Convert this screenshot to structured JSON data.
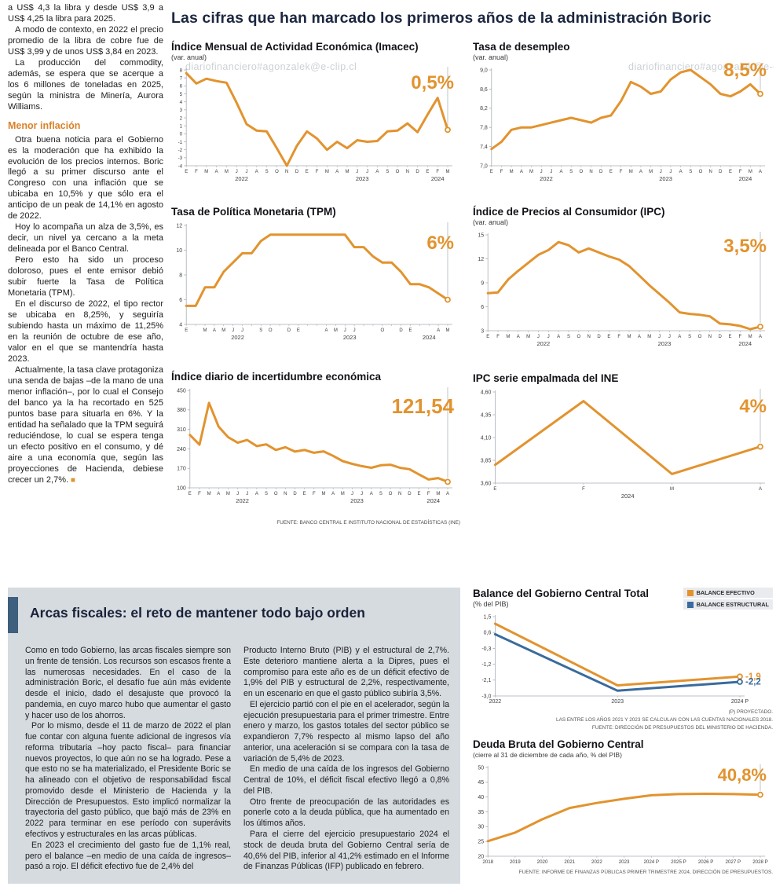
{
  "watermark": "diariofinanciero#agonzalek@e-clip.cl",
  "left_article": {
    "paragraphs_top": [
      "a US$ 4,3 la libra y desde US$ 3,9 a US$ 4,25 la libra para 2025.",
      "A modo de contexto, en 2022 el precio promedio de la libra de cobre fue de US$ 3,99 y de unos US$ 3,84 en 2023.",
      "La producción del commodity, además, se espera que se acerque a los 6 millones de toneladas en 2025, según la ministra de Minería, Aurora Williams."
    ],
    "heading": "Menor inflación",
    "paragraphs_bottom": [
      "Otra buena noticia para el Gobierno es la moderación que ha exhibido la evolución de los precios internos. Boric llegó a su primer discurso ante el Congreso con una inflación que se ubicaba en 10,5% y que sólo era el anticipo de un peak de 14,1% en agosto de 2022.",
      "Hoy lo acompaña un alza de 3,5%, es decir, un nivel ya cercano a la meta delineada por el Banco Central.",
      "Pero esto ha sido un proceso doloroso, pues el ente emisor debió subir fuerte la Tasa de Política Monetaria (TPM).",
      "En el discurso de 2022, el tipo rector se ubicaba en 8,25%, y seguiría subiendo hasta un máximo de 11,25% en la reunión de octubre de ese año, valor en el que se mantendría hasta 2023.",
      "Actualmente, la tasa clave protagoniza una senda de bajas –de la mano de una menor inflación–, por lo cual el Consejo del banco ya la ha recortado en 525 puntos base para situarla en 6%. Y la entidad ha señalado que la TPM seguirá reduciéndose, lo cual se espera tenga un efecto positivo en el consumo, y dé aire a una economía que, según las proyecciones de Hacienda, debiese crecer un 2,7%."
    ],
    "end_mark": "■"
  },
  "main": {
    "title": "Las cifras que han marcado los primeros años de la administración Boric",
    "source_note": "FUENTE: BANCO CENTRAL E INSTITUTO NACIONAL DE ESTADÍSTICAS (INE)"
  },
  "fiscal_section": {
    "title": "Arcas fiscales: el reto de mantener todo bajo orden",
    "col1": [
      "Como en todo Gobierno, las arcas fiscales siempre son un frente de tensión. Los recursos son escasos frente a las numerosas necesidades. En el caso de la administración Boric, el desafío fue aún más evidente desde el inicio, dado el desajuste que provocó la pandemia, en cuyo marco hubo que aumentar el gasto y hacer uso de los ahorros.",
      "Por lo mismo, desde el 11 de marzo de 2022 el plan fue contar con alguna fuente adicional de ingresos vía reforma tributaria –hoy pacto fiscal– para financiar nuevos proyectos, lo que aún no se ha logrado. Pese a que esto no se ha materializado, el Presidente Boric se ha alineado con el objetivo de responsabilidad fiscal promovido desde el Ministerio de Hacienda y la Dirección de Presupuestos. Esto implicó normalizar la trayectoria del gasto público, que bajó más de 23% en 2022 para terminar en ese período con superávits efectivos y estructurales en las arcas públicas.",
      "En 2023 el crecimiento del gasto fue de 1,1% real, pero el balance –en medio de una caída de ingresos– pasó a rojo. El déficit efectivo fue de 2,4% del"
    ],
    "col2": [
      "Producto Interno Bruto (PIB) y el estructural de 2,7%. Este deterioro mantiene alerta a la Dipres, pues el compromiso para este año es de un déficit efectivo de 1,9% del PIB y estructural de 2,2%, respectivamente, en un escenario en que el gasto público subiría 3,5%.",
      "El ejercicio partió con el pie en el acelerador, según la ejecución presupuestaria para el primer trimestre. Entre enero y marzo, los gastos totales del sector público se expandieron 7,7% respecto al mismo lapso del año anterior, una aceleración si se compara con la tasa de variación de 5,4% de 2023.",
      "En medio de una caída de los ingresos del Gobierno Central de 10%, el déficit fiscal efectivo llegó a 0,8% del PIB.",
      "Otro frente de preocupación de las autoridades es ponerle coto a la deuda pública, que ha aumentado en los últimos años.",
      "Para el cierre del ejercicio presupuestario 2024 el stock de deuda bruta del Gobierno Central sería de 40,6% del PIB, inferior al 41,2% estimado en el Informe de Finanzas Públicas (IFP) publicado en febrero."
    ]
  },
  "balance_notes": [
    "(P) PROYECTADO.",
    "LAS ENTRE LOS AÑOS 2021 Y 2023 SE CALCULAN CON LAS CUENTAS NACIONALES 2018.",
    "FUENTE: DIRECCIÓN DE PRESUPUESTOS DEL MINISTERIO DE HACIENDA."
  ],
  "deuda_note": "FUENTE: INFORME DE FINANZAS PÚBLICAS PRIMER TRIMESTRE 2024, DIRECCIÓN DE PRESUPUESTOS.",
  "colors": {
    "accent_orange": "#E2932E",
    "line_blue": "#3A6B9C",
    "headline_navy": "#1C2740"
  },
  "chart_data": [
    {
      "id": "imacec",
      "type": "line",
      "title": "Índice Mensual de Actividad Económica (Imacec)",
      "subtitle": "(var. anual)",
      "highlight": "0,5%",
      "color": "#E2932E",
      "ylim": [
        -4,
        8
      ],
      "yfs": 6.3,
      "yticks": [
        8,
        7,
        6,
        5,
        4,
        3,
        2,
        1,
        0,
        -1,
        -2,
        -3,
        -4
      ],
      "x": [
        "E",
        "F",
        "M",
        "A",
        "M",
        "J",
        "J",
        "A",
        "S",
        "O",
        "N",
        "D",
        "E",
        "F",
        "M",
        "A",
        "M",
        "J",
        "J",
        "A",
        "S",
        "O",
        "N",
        "D",
        "E",
        "F",
        "M"
      ],
      "year_groups": [
        {
          "label": "2022",
          "from": 0,
          "to": 11
        },
        {
          "label": "2023",
          "from": 12,
          "to": 23
        },
        {
          "label": "2024",
          "from": 24,
          "to": 26
        }
      ],
      "values": [
        7.6,
        6.3,
        6.9,
        6.6,
        6.4,
        3.9,
        1.2,
        0.4,
        0.3,
        -1.8,
        -4.0,
        -1.5,
        0.3,
        -0.6,
        -2.0,
        -1.0,
        -1.8,
        -0.8,
        -1.0,
        -0.9,
        0.3,
        0.4,
        1.3,
        0.2,
        2.4,
        4.5,
        0.5
      ]
    },
    {
      "id": "desempleo",
      "type": "line",
      "title": "Tasa de desempleo",
      "subtitle": "(var. anual)",
      "highlight": "8,5%",
      "color": "#E2932E",
      "ylim": [
        7.0,
        9.0
      ],
      "yticks": [
        9.0,
        8.6,
        8.2,
        7.8,
        7.4,
        7.0
      ],
      "ytick_labels": [
        "9,0",
        "8,6",
        "8,2",
        "7,8",
        "7,4",
        "7,0"
      ],
      "x": [
        "E",
        "F",
        "M",
        "A",
        "M",
        "J",
        "J",
        "A",
        "S",
        "O",
        "N",
        "D",
        "E",
        "F",
        "M",
        "A",
        "M",
        "J",
        "J",
        "A",
        "S",
        "O",
        "N",
        "D",
        "E",
        "F",
        "M",
        "A"
      ],
      "year_groups": [
        {
          "label": "2022",
          "from": 0,
          "to": 11
        },
        {
          "label": "2023",
          "from": 12,
          "to": 23
        },
        {
          "label": "2024",
          "from": 24,
          "to": 27
        }
      ],
      "values": [
        7.35,
        7.5,
        7.75,
        7.8,
        7.8,
        7.85,
        7.9,
        7.95,
        8.0,
        7.95,
        7.9,
        8.0,
        8.05,
        8.35,
        8.75,
        8.65,
        8.5,
        8.55,
        8.8,
        8.95,
        9.0,
        8.85,
        8.7,
        8.5,
        8.45,
        8.55,
        8.7,
        8.5
      ]
    },
    {
      "id": "tpm",
      "type": "line",
      "title": "Tasa de Política Monetaria (TPM)",
      "subtitle": "",
      "highlight": "6%",
      "color": "#E2932E",
      "ylim": [
        4,
        12
      ],
      "yticks": [
        12,
        10,
        8,
        6,
        4
      ],
      "x": [
        "E",
        "",
        "M",
        "A",
        "M",
        "J",
        "J",
        "",
        "S",
        "O",
        "",
        "D",
        "E",
        "",
        "",
        "A",
        "M",
        "J",
        "J",
        "",
        "",
        "O",
        "",
        "D",
        "E",
        "",
        "",
        "A",
        "M"
      ],
      "year_groups": [
        {
          "label": "2022",
          "from": 0,
          "to": 11
        },
        {
          "label": "2023",
          "from": 12,
          "to": 23
        },
        {
          "label": "2024",
          "from": 24,
          "to": 28
        }
      ],
      "values": [
        5.5,
        5.5,
        7.0,
        7.0,
        8.25,
        9.0,
        9.75,
        9.75,
        10.75,
        11.25,
        11.25,
        11.25,
        11.25,
        11.25,
        11.25,
        11.25,
        11.25,
        11.25,
        10.25,
        10.25,
        9.5,
        9.0,
        9.0,
        8.25,
        7.25,
        7.25,
        7.0,
        6.5,
        6.0
      ]
    },
    {
      "id": "ipc",
      "type": "line",
      "title": "Índice de Precios al Consumidor (IPC)",
      "subtitle": "(var. anual)",
      "highlight": "3,5%",
      "color": "#E2932E",
      "ylim": [
        3,
        15
      ],
      "yticks": [
        15,
        12,
        9,
        6,
        3
      ],
      "x": [
        "E",
        "F",
        "M",
        "A",
        "M",
        "J",
        "J",
        "A",
        "S",
        "O",
        "N",
        "D",
        "E",
        "F",
        "M",
        "A",
        "M",
        "J",
        "J",
        "A",
        "S",
        "O",
        "N",
        "D",
        "E",
        "F",
        "M",
        "A"
      ],
      "year_groups": [
        {
          "label": "2022",
          "from": 0,
          "to": 11
        },
        {
          "label": "2023",
          "from": 12,
          "to": 23
        },
        {
          "label": "2024",
          "from": 24,
          "to": 27
        }
      ],
      "values": [
        7.7,
        7.8,
        9.4,
        10.5,
        11.5,
        12.5,
        13.1,
        14.1,
        13.7,
        12.8,
        13.3,
        12.8,
        12.3,
        11.9,
        11.1,
        9.9,
        8.7,
        7.6,
        6.5,
        5.3,
        5.1,
        5.0,
        4.8,
        3.9,
        3.8,
        3.6,
        3.2,
        3.5
      ]
    },
    {
      "id": "incertidumbre",
      "type": "line",
      "title": "Índice diario de incertidumbre económica",
      "subtitle": "",
      "highlight": "121,54",
      "color": "#E2932E",
      "ylim": [
        100,
        450
      ],
      "yticks": [
        450,
        380,
        310,
        240,
        170,
        100
      ],
      "x": [
        "E",
        "F",
        "M",
        "A",
        "M",
        "J",
        "J",
        "A",
        "S",
        "O",
        "N",
        "D",
        "E",
        "F",
        "M",
        "A",
        "M",
        "J",
        "J",
        "A",
        "S",
        "O",
        "N",
        "D",
        "E",
        "F",
        "M",
        "A"
      ],
      "year_groups": [
        {
          "label": "2022",
          "from": 0,
          "to": 11
        },
        {
          "label": "2023",
          "from": 12,
          "to": 23
        },
        {
          "label": "2024",
          "from": 24,
          "to": 27
        }
      ],
      "values": [
        290,
        255,
        405,
        320,
        282,
        262,
        272,
        250,
        256,
        236,
        246,
        230,
        236,
        226,
        231,
        215,
        196,
        186,
        178,
        172,
        181,
        183,
        172,
        167,
        148,
        130,
        135,
        121.54
      ]
    },
    {
      "id": "ipc_ine",
      "type": "line",
      "title": "IPC serie empalmada del INE",
      "subtitle": "",
      "highlight": "4%",
      "color": "#E2932E",
      "ylim": [
        3.6,
        4.6
      ],
      "yticks": [
        4.6,
        4.35,
        4.1,
        3.85,
        3.6
      ],
      "ytick_labels": [
        "4,60",
        "4,35",
        "4,10",
        "3,85",
        "3,60"
      ],
      "x": [
        "E",
        "F",
        "M",
        "A"
      ],
      "year_groups": [
        {
          "label": "2024",
          "from": 0,
          "to": 3
        }
      ],
      "values": [
        3.8,
        4.5,
        3.7,
        4.0
      ]
    },
    {
      "id": "balance",
      "type": "line",
      "title": "Balance del Gobierno Central Total",
      "subtitle": "(% del PIB)",
      "ylim": [
        -3.0,
        1.5
      ],
      "mr": 42,
      "xfs": 7,
      "yticks": [
        1.5,
        0.6,
        -0.3,
        -1.2,
        -2.1,
        -3.0
      ],
      "ytick_labels": [
        "1,5",
        "0,6",
        "-0,3",
        "-1,2",
        "-2,1",
        "-3,0"
      ],
      "x": [
        "2022",
        "2023",
        "2024 P"
      ],
      "series": [
        {
          "name": "BALANCE EFECTIVO",
          "color": "#E2932E",
          "values": [
            1.1,
            -2.4,
            -1.9
          ],
          "end_label": "-1,9"
        },
        {
          "name": "BALANCE ESTRUCTURAL",
          "color": "#3A6B9C",
          "values": [
            0.5,
            -2.7,
            -2.2
          ],
          "end_label": "-2,2"
        }
      ]
    },
    {
      "id": "deuda",
      "type": "line",
      "title": "Deuda Bruta del Gobierno Central",
      "subtitle": "(cierre al 31 de diciembre de cada año, % del PIB)",
      "highlight": "40,8%",
      "color": "#E2932E",
      "ylim": [
        20,
        50
      ],
      "xfs": 6.2,
      "yticks": [
        50,
        45,
        40,
        35,
        30,
        25,
        20
      ],
      "x": [
        "2018",
        "2019",
        "2020",
        "2021",
        "2022",
        "2023",
        "2024 P",
        "2025 P",
        "2026 P",
        "2027 P",
        "2028 P"
      ],
      "values": [
        25.1,
        28.0,
        32.5,
        36.3,
        38.0,
        39.4,
        40.6,
        41.0,
        41.1,
        41.0,
        40.8
      ]
    }
  ]
}
